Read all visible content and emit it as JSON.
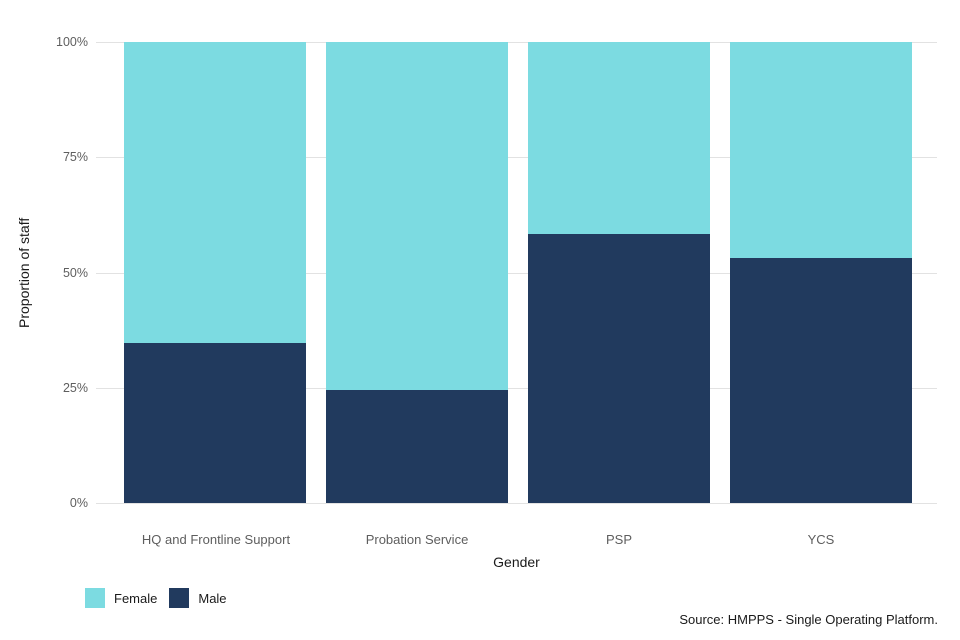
{
  "source": "Source: HMPPS - Single Operating Platform.",
  "colors": {
    "background": "#ffffff",
    "gridline": "#e2e2e2",
    "tick_text": "#5e5e5e",
    "axis_title_text": "#1a1a1a",
    "female": "#7cdbe1",
    "male": "#213a5e"
  },
  "chart_data": {
    "type": "bar",
    "subtype": "stacked-percent",
    "title": "",
    "categories": [
      "HQ and Frontline Support",
      "Probation Service",
      "PSP",
      "YCS"
    ],
    "series": [
      {
        "name": "Female",
        "color": "#7cdbe1",
        "values": [
          65.3,
          75.4,
          41.6,
          46.9
        ]
      },
      {
        "name": "Male",
        "color": "#213a5e",
        "values": [
          34.7,
          24.6,
          58.4,
          53.1
        ]
      }
    ],
    "stack_order_bottom_to_top": [
      "Male",
      "Female"
    ],
    "xlabel": "Gender",
    "ylabel": "Proportion of staff",
    "ylim": [
      0,
      100
    ],
    "yticks_percent": [
      0,
      25,
      50,
      75,
      100
    ],
    "ytick_labels": [
      "0%",
      "25%",
      "50%",
      "75%",
      "100%"
    ],
    "grid": "horizontal",
    "legend_position": "bottom-left",
    "legend": [
      "Female",
      "Male"
    ]
  }
}
